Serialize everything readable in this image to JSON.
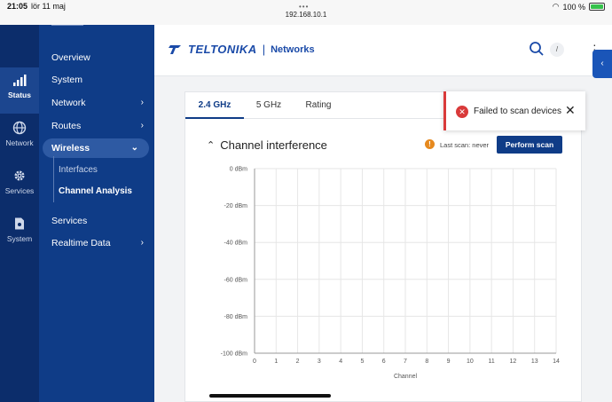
{
  "statusbar": {
    "time": "21:05",
    "date": "lör 11 maj",
    "url": "192.168.10.1",
    "battery": "100 %"
  },
  "rail": [
    {
      "label": "Status",
      "icon": "signal-bars-icon",
      "active": true
    },
    {
      "label": "Network",
      "icon": "globe-icon",
      "active": false
    },
    {
      "label": "Services",
      "icon": "gear-icon",
      "active": false
    },
    {
      "label": "System",
      "icon": "system-file-icon",
      "active": false
    }
  ],
  "sidebar": {
    "items": [
      "Overview",
      "System",
      "Network",
      "Routes",
      "Wireless"
    ],
    "wireless_sub": [
      "Interfaces",
      "Channel Analysis"
    ],
    "bottom": [
      "Services",
      "Realtime Data"
    ]
  },
  "header": {
    "brand": "TELTONIKA",
    "product": "Networks",
    "search_shortcut": "/"
  },
  "tabs": [
    "2.4 GHz",
    "5 GHz",
    "Rating"
  ],
  "section": {
    "title": "Channel interference",
    "last_scan": "Last scan: never",
    "scan_button": "Perform scan"
  },
  "toast": {
    "message": "Failed to scan devices"
  },
  "colors": {
    "navy": "#0f3c87",
    "rail": "#0c2d6b",
    "error": "#d93a3a",
    "warning": "#e6891e"
  },
  "chart_data": {
    "type": "line",
    "title": "",
    "xlabel": "Channel",
    "ylabel": "",
    "x_ticks": [
      0,
      1,
      2,
      3,
      4,
      5,
      6,
      7,
      8,
      9,
      10,
      11,
      12,
      13,
      14
    ],
    "y_ticks": [
      "0 dBm",
      "-20 dBm",
      "-40 dBm",
      "-60 dBm",
      "-80 dBm",
      "-100 dBm"
    ],
    "xlim": [
      0,
      14
    ],
    "ylim": [
      -100,
      0
    ],
    "series": [],
    "grid": true
  }
}
